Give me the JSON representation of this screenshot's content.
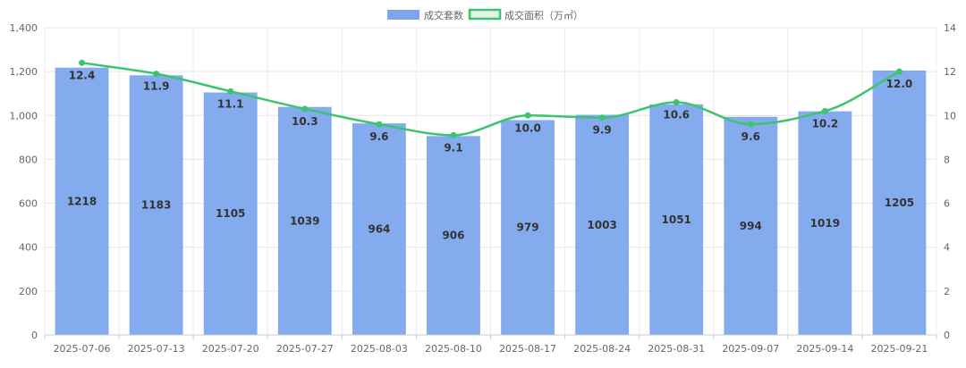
{
  "chart_data": {
    "type": "bar",
    "categories": [
      "2025-07-06",
      "2025-07-13",
      "2025-07-20",
      "2025-07-27",
      "2025-08-03",
      "2025-08-10",
      "2025-08-17",
      "2025-08-24",
      "2025-08-31",
      "2025-09-07",
      "2025-09-14",
      "2025-09-21"
    ],
    "series": [
      {
        "name": "成交套数",
        "type": "bar",
        "axis": "left",
        "color": "#7EA6EE",
        "values": [
          1218,
          1183,
          1105,
          1039,
          964,
          906,
          979,
          1003,
          1051,
          994,
          1019,
          1205
        ]
      },
      {
        "name": "成交面积（万㎡）",
        "type": "line",
        "axis": "right",
        "color": "#3CC46E",
        "smooth": true,
        "values": [
          12.4,
          11.9,
          11.1,
          10.3,
          9.6,
          9.1,
          10.0,
          9.9,
          10.6,
          9.6,
          10.2,
          12.0
        ]
      }
    ],
    "ylim_left": [
      0,
      1400
    ],
    "yticks_left": [
      "0",
      "200",
      "400",
      "600",
      "800",
      "1,000",
      "1,200",
      "1,400"
    ],
    "ylim_right": [
      0,
      14
    ],
    "yticks_right": [
      "0",
      "2",
      "4",
      "6",
      "8",
      "10",
      "12",
      "14"
    ],
    "grid": true,
    "legend": "top-center"
  }
}
